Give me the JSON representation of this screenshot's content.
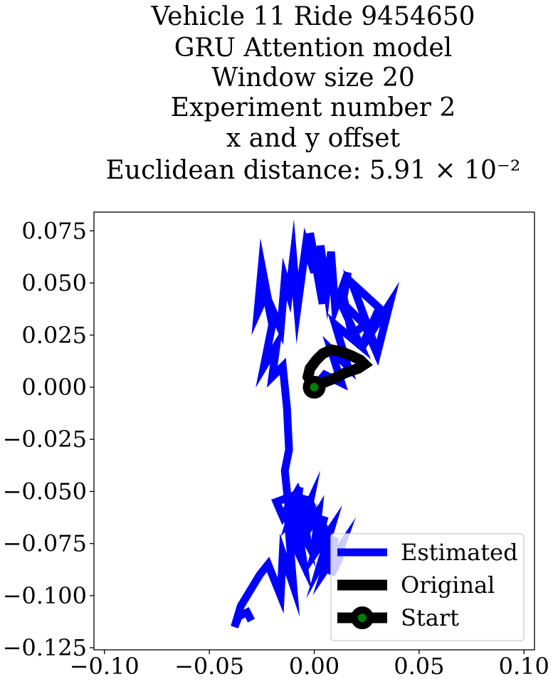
{
  "chart_data": {
    "type": "line",
    "title_lines": [
      "Vehicle 11 Ride 9454650",
      "GRU Attention model",
      "Window size 20",
      "Experiment number 2",
      "x and y offset",
      "Euclidean distance: 5.91 × 10⁻²"
    ],
    "xlim": [
      -0.105,
      0.105
    ],
    "ylim": [
      -0.126,
      0.084
    ],
    "x_ticks": [
      -0.1,
      -0.05,
      0.0,
      0.05,
      0.1
    ],
    "y_ticks": [
      0.075,
      0.05,
      0.025,
      0.0,
      -0.025,
      -0.05,
      -0.075,
      -0.1,
      -0.125
    ],
    "x_tick_labels": [
      "−0.10",
      "−0.05",
      "0.00",
      "0.05",
      "0.10"
    ],
    "y_tick_labels": [
      "0.075",
      "0.050",
      "0.025",
      "0.000",
      "−0.025",
      "−0.050",
      "−0.075",
      "−0.100",
      "−0.125"
    ],
    "grid": false,
    "legend_position": "bottom-right",
    "series": [
      {
        "name": "Estimated",
        "color": "#0000ff",
        "x": [
          0.0,
          0.005,
          0.013,
          0.008,
          0.016,
          0.01,
          0.022,
          0.012,
          0.026,
          0.018,
          0.031,
          0.022,
          0.036,
          0.03,
          0.024,
          0.018,
          0.014,
          0.016,
          0.01,
          0.008,
          0.006,
          0.003,
          0.004,
          -0.002,
          0.0,
          -0.004,
          -0.008,
          -0.01,
          -0.012,
          -0.014,
          -0.016,
          -0.022,
          -0.025,
          -0.027,
          -0.023,
          -0.02,
          -0.024,
          -0.018,
          -0.02,
          -0.015,
          -0.013,
          -0.012,
          -0.014,
          -0.013,
          -0.012,
          -0.01,
          -0.018,
          -0.015,
          -0.008,
          -0.005,
          -0.012,
          -0.007,
          -0.01,
          -0.004,
          -0.008,
          -0.002,
          -0.006,
          -0.001,
          -0.004,
          0.002,
          0.0,
          0.005,
          0.0,
          0.008,
          0.003,
          0.01,
          0.005,
          0.013,
          0.008,
          0.012,
          0.006,
          0.01,
          0.004,
          0.008,
          0.0,
          0.004,
          -0.002,
          0.002,
          -0.005,
          -0.003,
          -0.008,
          -0.005,
          -0.012,
          -0.01,
          -0.015,
          -0.016,
          -0.022,
          -0.026,
          -0.032,
          -0.035,
          -0.038,
          -0.036,
          -0.032,
          -0.03
        ],
        "y": [
          0.0,
          0.006,
          0.002,
          0.018,
          0.01,
          0.03,
          0.02,
          0.042,
          0.028,
          0.05,
          0.038,
          0.018,
          0.04,
          0.016,
          0.03,
          0.025,
          0.043,
          0.055,
          0.038,
          0.065,
          0.047,
          0.068,
          0.04,
          0.074,
          0.055,
          0.068,
          0.038,
          0.062,
          0.045,
          0.052,
          0.028,
          0.042,
          0.058,
          0.036,
          0.045,
          0.03,
          0.01,
          0.02,
          0.005,
          0.01,
          -0.01,
          -0.03,
          -0.04,
          -0.05,
          -0.06,
          -0.052,
          -0.055,
          -0.062,
          -0.05,
          -0.058,
          -0.065,
          -0.048,
          -0.072,
          -0.052,
          -0.068,
          -0.055,
          -0.075,
          -0.058,
          -0.07,
          -0.06,
          -0.078,
          -0.062,
          -0.08,
          -0.068,
          -0.085,
          -0.072,
          -0.088,
          -0.076,
          -0.09,
          -0.082,
          -0.07,
          -0.088,
          -0.068,
          -0.08,
          -0.062,
          -0.07,
          -0.055,
          -0.068,
          -0.062,
          -0.075,
          -0.065,
          -0.085,
          -0.07,
          -0.095,
          -0.08,
          -0.1,
          -0.085,
          -0.09,
          -0.1,
          -0.105,
          -0.115,
          -0.11,
          -0.108,
          -0.112
        ]
      },
      {
        "name": "Original",
        "color": "#000000",
        "x": [
          0.0,
          -0.003,
          -0.002,
          0.001,
          0.004,
          0.008,
          0.013,
          0.018,
          0.022,
          0.024,
          0.021,
          0.015,
          0.009,
          0.004,
          0.0
        ],
        "y": [
          0.0,
          0.005,
          0.009,
          0.013,
          0.016,
          0.018,
          0.017,
          0.015,
          0.013,
          0.011,
          0.009,
          0.007,
          0.004,
          0.002,
          0.0
        ]
      }
    ],
    "start_point": {
      "name": "Start",
      "x": 0.0,
      "y": 0.0,
      "edge_color": "#000000",
      "fill_color": "#008000"
    }
  }
}
